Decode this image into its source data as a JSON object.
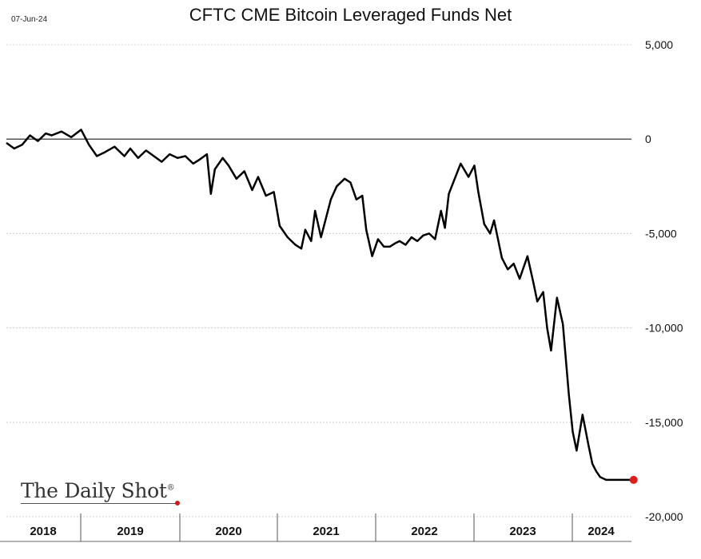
{
  "date_label": "07-Jun-24",
  "logo": {
    "text": "The Daily Shot",
    "mark": "®"
  },
  "colors": {
    "line": "#000000",
    "grid": "#cfcfcf",
    "zero_line": "#555555",
    "last_point": "#d9201c"
  },
  "chart_data": {
    "type": "line",
    "title": "CFTC CME Bitcoin Leveraged Funds Net",
    "xlabel": "",
    "ylabel": "",
    "ylim": [
      -20000,
      5000
    ],
    "yticks": [
      5000,
      0,
      -5000,
      -10000,
      -15000,
      -20000
    ],
    "ytick_labels": [
      "5,000",
      "0",
      "-5,000",
      "-10,000",
      "-15,000",
      "-20,000"
    ],
    "y_axis_side": "right",
    "grid": true,
    "x_categories": [
      "2018",
      "2019",
      "2020",
      "2021",
      "2022",
      "2023",
      "2024"
    ],
    "xlim": [
      2018.0,
      2024.45
    ],
    "series": [
      {
        "name": "",
        "last_point_marker": true,
        "x": [
          2018.0,
          2018.08,
          2018.16,
          2018.24,
          2018.32,
          2018.4,
          2018.46,
          2018.56,
          2018.66,
          2018.76,
          2018.84,
          2018.92,
          2019.0,
          2019.1,
          2019.2,
          2019.26,
          2019.34,
          2019.42,
          2019.5,
          2019.58,
          2019.66,
          2019.74,
          2019.82,
          2019.9,
          2019.96,
          2020.04,
          2020.08,
          2020.12,
          2020.2,
          2020.26,
          2020.34,
          2020.42,
          2020.5,
          2020.56,
          2020.64,
          2020.72,
          2020.78,
          2020.86,
          2020.94,
          2021.0,
          2021.04,
          2021.1,
          2021.14,
          2021.2,
          2021.3,
          2021.36,
          2021.44,
          2021.5,
          2021.56,
          2021.62,
          2021.66,
          2021.72,
          2021.78,
          2021.84,
          2021.9,
          2021.96,
          2022.0,
          2022.06,
          2022.12,
          2022.18,
          2022.24,
          2022.3,
          2022.36,
          2022.42,
          2022.46,
          2022.5,
          2022.56,
          2022.62,
          2022.7,
          2022.76,
          2022.8,
          2022.86,
          2022.92,
          2022.96,
          2023.04,
          2023.1,
          2023.16,
          2023.22,
          2023.3,
          2023.36,
          2023.4,
          2023.46,
          2023.5,
          2023.54,
          2023.6,
          2023.66,
          2023.72,
          2023.76,
          2023.8,
          2023.86,
          2023.92,
          2023.96,
          2024.0,
          2024.04,
          2024.1,
          2024.14,
          2024.2,
          2024.26,
          2024.3,
          2024.34,
          2024.38
        ],
        "y": [
          -200,
          -500,
          -300,
          200,
          -100,
          300,
          200,
          400,
          100,
          500,
          -300,
          -900,
          -700,
          -400,
          -900,
          -500,
          -1000,
          -600,
          -900,
          -1200,
          -800,
          -1000,
          -900,
          -1300,
          -1100,
          -800,
          -2900,
          -1600,
          -1000,
          -1400,
          -2100,
          -1700,
          -2700,
          -2000,
          -3000,
          -2800,
          -4600,
          -5200,
          -5600,
          -5800,
          -4800,
          -5400,
          -3800,
          -5200,
          -3200,
          -2500,
          -2100,
          -2300,
          -3200,
          -3000,
          -4800,
          -6200,
          -5300,
          -5700,
          -5700,
          -5500,
          -5400,
          -5600,
          -5200,
          -5400,
          -5100,
          -5000,
          -5300,
          -3800,
          -4700,
          -2900,
          -2100,
          -1300,
          -2000,
          -1400,
          -2800,
          -4500,
          -5000,
          -4300,
          -6300,
          -6900,
          -6600,
          -7400,
          -6200,
          -7600,
          -8600,
          -8100,
          -10000,
          -11200,
          -8400,
          -9800,
          -13500,
          -15500,
          -16500,
          -14600,
          -16200,
          -17200,
          -17600,
          -17900,
          -18050,
          -18050,
          -18050,
          -18050,
          -18050,
          -18050,
          -18050
        ]
      }
    ]
  }
}
